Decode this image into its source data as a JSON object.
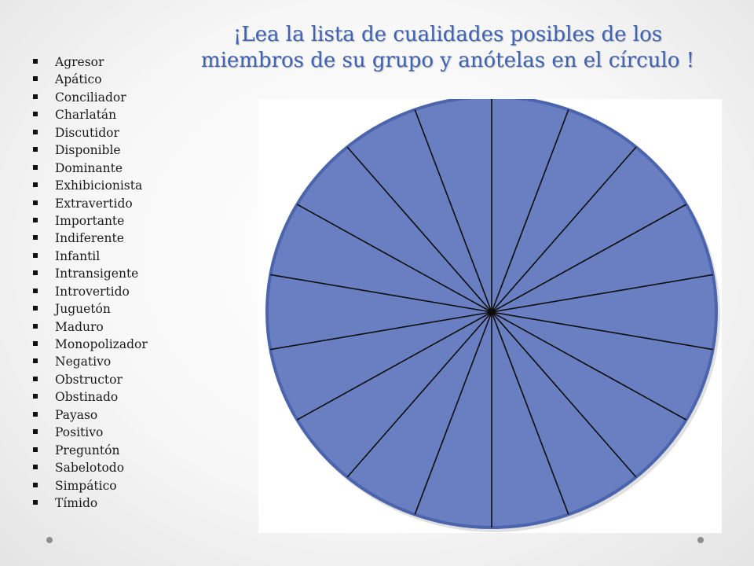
{
  "slide": {
    "title_lines": [
      "¡Lea la lista de cualidades posibles de los",
      "miembros de su grupo y anótelas en el círculo !"
    ],
    "qualities": [
      "Agresor",
      "Apático",
      "Conciliador",
      "Charlatán",
      "Discutidor",
      "Disponible",
      "Dominante",
      "Exhibicionista",
      "Extravertido",
      "Importante",
      "Indiferente",
      "Infantil",
      "Intransigente",
      "Introvertido",
      "Juguetón",
      "Maduro",
      "Monopolizador",
      "Negativo",
      "Obstructor",
      "Obstinado",
      "Payaso",
      "Positivo",
      "Preguntón",
      "Sabelotodo",
      "Simpático",
      "Tímido"
    ],
    "wheel": {
      "segments": 18,
      "fill_color": "#6a7fc1",
      "line_color": "#0d0d0d",
      "rim_color": "#4a64ad"
    }
  }
}
